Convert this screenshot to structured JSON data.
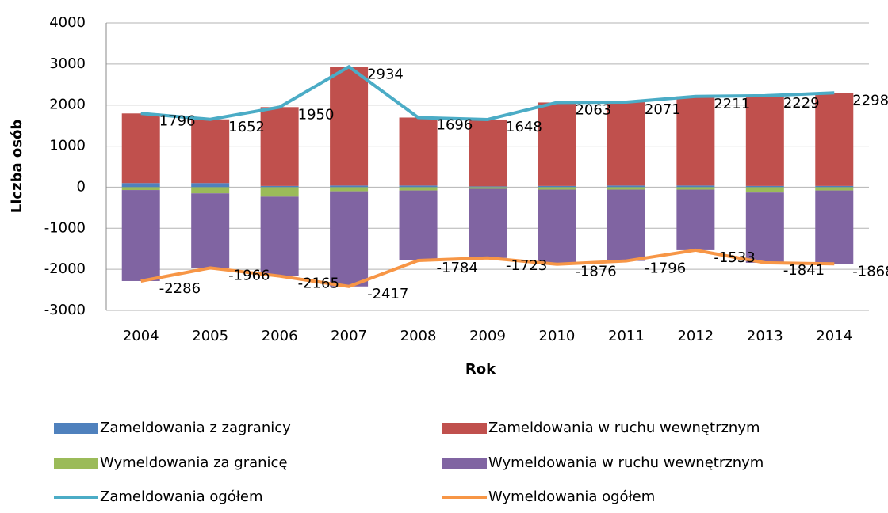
{
  "chart_data": {
    "type": "bar",
    "stacked": true,
    "xlabel": "Rok",
    "ylabel": "Liczba osób",
    "categories": [
      "2004",
      "2005",
      "2006",
      "2007",
      "2008",
      "2009",
      "2010",
      "2011",
      "2012",
      "2013",
      "2014"
    ],
    "ylim": [
      -3000,
      4000
    ],
    "yticks": [
      -3000,
      -2000,
      -1000,
      0,
      1000,
      2000,
      3000,
      4000
    ],
    "grid": true,
    "series": [
      {
        "name": "Zameldowania z zagranicy",
        "type": "bar",
        "color": "#4f81bd",
        "values": [
          100,
          100,
          30,
          40,
          40,
          20,
          30,
          40,
          40,
          30,
          30
        ]
      },
      {
        "name": "Zameldowania w ruchu wewnętrznym",
        "type": "bar",
        "color": "#c0504d",
        "values": [
          1696,
          1552,
          1920,
          2894,
          1656,
          1628,
          2033,
          2031,
          2171,
          2199,
          2268
        ]
      },
      {
        "name": "Wymeldowania za granicę",
        "type": "bar",
        "color": "#9bbb59",
        "values": [
          -70,
          -150,
          -230,
          -100,
          -80,
          -40,
          -60,
          -60,
          -60,
          -130,
          -80
        ]
      },
      {
        "name": "Wymeldowania w ruchu wewnętrznym",
        "type": "bar",
        "color": "#8064a2",
        "values": [
          -2216,
          -1816,
          -1935,
          -2317,
          -1704,
          -1683,
          -1816,
          -1736,
          -1473,
          -1711,
          -1788
        ]
      },
      {
        "name": "Zameldowania ogółem",
        "type": "line",
        "color": "#4bacc6",
        "values": [
          1796,
          1652,
          1950,
          2934,
          1696,
          1648,
          2063,
          2071,
          2211,
          2229,
          2298
        ]
      },
      {
        "name": "Wymeldowania ogółem",
        "type": "line",
        "color": "#f79646",
        "values": [
          -2286,
          -1966,
          -2165,
          -2417,
          -1784,
          -1723,
          -1876,
          -1796,
          -1533,
          -1841,
          -1868
        ]
      }
    ]
  }
}
